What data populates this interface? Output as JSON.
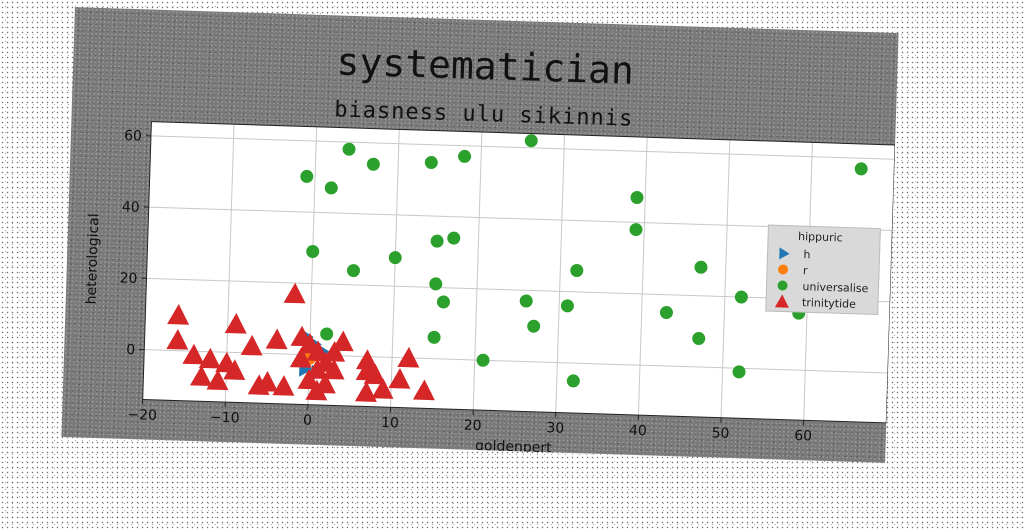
{
  "chart_data": {
    "type": "scatter",
    "title": "systematician",
    "subtitle": "biasness ulu sikinnis",
    "xlabel": "goldenpert",
    "ylabel": "heterological",
    "xlim": [
      -20,
      70
    ],
    "ylim": [
      -14,
      64
    ],
    "xticks": [
      -20,
      -10,
      0,
      10,
      20,
      30,
      40,
      50,
      60
    ],
    "yticks": [
      0,
      20,
      40,
      60
    ],
    "grid": true,
    "legend": {
      "title": "hippuric",
      "placement": "right"
    },
    "series": [
      {
        "name": "h",
        "marker": "triangle-right",
        "color": "#1f77b4",
        "points": [
          [
            -0.5,
            5
          ],
          [
            0.5,
            3
          ],
          [
            1.5,
            1
          ],
          [
            0,
            1
          ],
          [
            -0.5,
            -4
          ],
          [
            1,
            -5
          ]
        ]
      },
      {
        "name": "r",
        "marker": "circle",
        "color": "#ff7f0e",
        "points": [
          [
            0,
            -1
          ],
          [
            1,
            0
          ]
        ]
      },
      {
        "name": "universalise",
        "marker": "circle",
        "color": "#2ca02c",
        "points": [
          [
            -1,
            50
          ],
          [
            2,
            47
          ],
          [
            4,
            58
          ],
          [
            7,
            54
          ],
          [
            14,
            55
          ],
          [
            18,
            57
          ],
          [
            26,
            62
          ],
          [
            39,
            47
          ],
          [
            39,
            38
          ],
          [
            66,
            57
          ],
          [
            0,
            29
          ],
          [
            5,
            24
          ],
          [
            10,
            28
          ],
          [
            15,
            33
          ],
          [
            17,
            34
          ],
          [
            15,
            21
          ],
          [
            16,
            16
          ],
          [
            15,
            6
          ],
          [
            21,
            0
          ],
          [
            26,
            17
          ],
          [
            27,
            10
          ],
          [
            31,
            16
          ],
          [
            32,
            26
          ],
          [
            32,
            -5
          ],
          [
            43,
            15
          ],
          [
            47,
            28
          ],
          [
            47,
            8
          ],
          [
            52,
            -1
          ],
          [
            52,
            20
          ],
          [
            59,
            16
          ],
          [
            2,
            6
          ]
        ]
      },
      {
        "name": "trinitytide",
        "marker": "triangle-up",
        "color": "#d62728",
        "points": [
          [
            -16,
            10
          ],
          [
            -16,
            3
          ],
          [
            -14,
            -1
          ],
          [
            -13,
            -7
          ],
          [
            -12,
            -2
          ],
          [
            -11,
            -8
          ],
          [
            -10,
            -3
          ],
          [
            -9,
            8
          ],
          [
            -9,
            -5
          ],
          [
            -7,
            2
          ],
          [
            -6,
            -9
          ],
          [
            -5,
            -8
          ],
          [
            -4,
            4
          ],
          [
            -3,
            -9
          ],
          [
            -2,
            17
          ],
          [
            -1,
            -1
          ],
          [
            0,
            -7
          ],
          [
            0,
            3
          ],
          [
            1,
            1
          ],
          [
            1,
            -4
          ],
          [
            2,
            -2
          ],
          [
            2,
            -8
          ],
          [
            3,
            -4
          ],
          [
            4,
            4
          ],
          [
            7,
            -1
          ],
          [
            7,
            -4
          ],
          [
            7,
            -10
          ],
          [
            8,
            -5
          ],
          [
            9,
            -9
          ],
          [
            11,
            -6
          ],
          [
            12,
            0
          ],
          [
            14,
            -9
          ],
          [
            3,
            1
          ],
          [
            -1,
            5
          ],
          [
            1,
            -10
          ]
        ]
      }
    ]
  }
}
